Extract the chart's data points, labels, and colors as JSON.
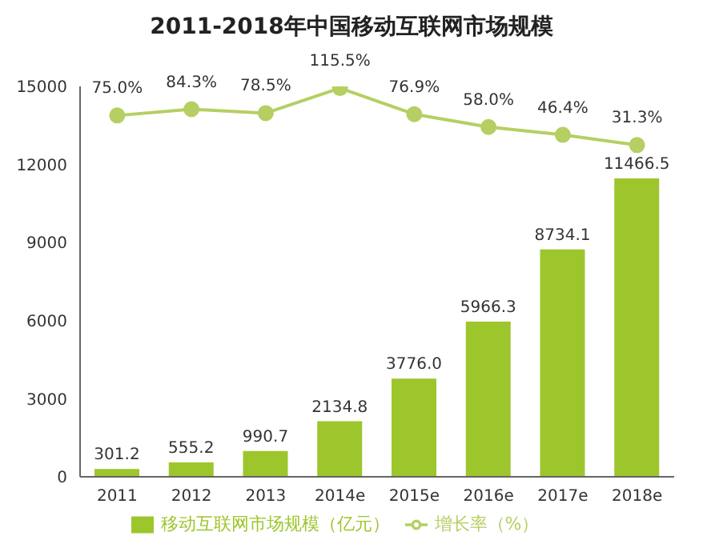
{
  "chart_data": {
    "type": "bar",
    "title": "2011-2018年中国移动互联网市场规模",
    "categories": [
      "2011",
      "2012",
      "2013",
      "2014e",
      "2015e",
      "2016e",
      "2017e",
      "2018e"
    ],
    "series": [
      {
        "name": "移动互联网市场规模（亿元）",
        "color": "#9dc62d",
        "values": [
          301.2,
          555.2,
          990.7,
          2134.8,
          3776.0,
          5966.3,
          8734.1,
          11466.5
        ],
        "value_labels": [
          "301.2",
          "555.2",
          "990.7",
          "2134.8",
          "3776.0",
          "5966.3",
          "8734.1",
          "11466.5"
        ]
      },
      {
        "name": "增长率（%）",
        "type": "line",
        "axis": "y2",
        "color": "#b5cf63",
        "marker": "circle",
        "values": [
          75.0,
          84.3,
          78.5,
          115.5,
          76.9,
          58.0,
          46.4,
          31.3
        ],
        "value_labels": [
          "75.0%",
          "84.3%",
          "78.5%",
          "115.5%",
          "76.9%",
          "58.0%",
          "46.4%",
          "31.3%"
        ]
      }
    ],
    "ylim": [
      0,
      15000
    ],
    "yticks": [
      0,
      3000,
      6000,
      9000,
      12000,
      15000
    ],
    "y2lim": [
      -459,
      118
    ],
    "grid": false,
    "legend": "bottom"
  }
}
